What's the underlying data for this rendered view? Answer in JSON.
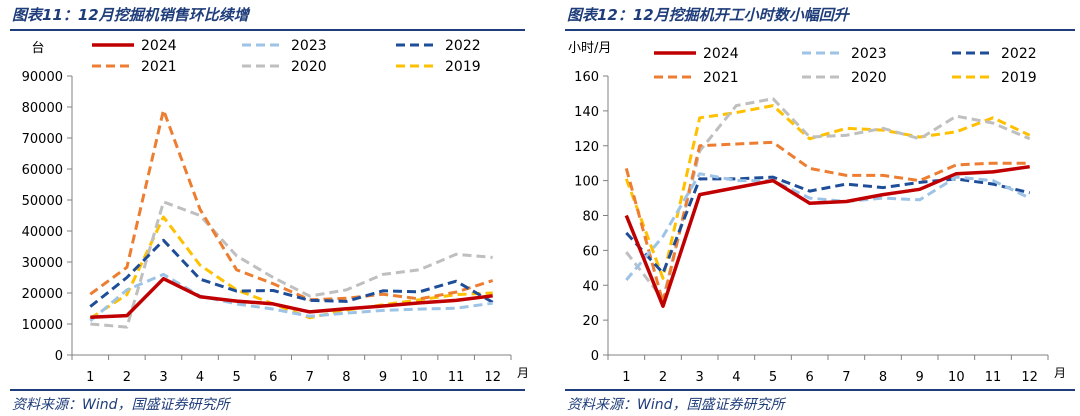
{
  "panels": [
    {
      "title": "图表11：12月挖掘机销售环比续增",
      "source": "资料来源：Wind，国盛证券研究所"
    },
    {
      "title": "图表12：12月挖掘机开工小时数小幅回升",
      "source": "资料来源：Wind，国盛证券研究所"
    }
  ],
  "chart_data": [
    {
      "type": "line",
      "title": "12月挖掘机销售环比续增",
      "ylabel": "台",
      "xlabel": "月",
      "ylim": [
        0,
        90000
      ],
      "yticks": [
        0,
        10000,
        20000,
        30000,
        40000,
        50000,
        60000,
        70000,
        80000,
        90000
      ],
      "ytick_labels": [
        "0",
        "10000",
        "20000",
        "30000",
        "40000",
        "50000",
        "60000",
        "70000",
        "80000",
        "90000"
      ],
      "categories": [
        "1",
        "2",
        "3",
        "4",
        "5",
        "6",
        "7",
        "8",
        "9",
        "10",
        "11",
        "12"
      ],
      "grid": false,
      "legend_position": "top",
      "series": [
        {
          "name": "2024",
          "color": "#c00000",
          "style": "solid",
          "values": [
            12200,
            12700,
            24600,
            18800,
            17400,
            16500,
            13900,
            14900,
            15800,
            16800,
            17600,
            19100
          ]
        },
        {
          "name": "2023",
          "color": "#9dc3e6",
          "style": "dashed",
          "values": [
            11000,
            21000,
            26000,
            19000,
            16500,
            14800,
            12500,
            13500,
            14400,
            14800,
            15100,
            16700
          ]
        },
        {
          "name": "2022",
          "color": "#1f4e99",
          "style": "dashed",
          "values": [
            15600,
            25000,
            37000,
            24500,
            20600,
            20800,
            17600,
            17300,
            20700,
            20400,
            23800,
            17000
          ]
        },
        {
          "name": "2021",
          "color": "#ed7d31",
          "style": "dashed",
          "values": [
            19600,
            28300,
            79000,
            47000,
            27500,
            23000,
            17800,
            18300,
            19600,
            18100,
            20300,
            24000
          ]
        },
        {
          "name": "2020",
          "color": "#bfbfbf",
          "style": "dashed",
          "values": [
            10000,
            9000,
            49400,
            45000,
            32000,
            25000,
            19000,
            21000,
            26000,
            27500,
            32500,
            31500
          ]
        },
        {
          "name": "2019",
          "color": "#ffc000",
          "style": "dashed",
          "values": [
            11800,
            19500,
            44500,
            29000,
            21000,
            16500,
            12000,
            14500,
            16200,
            17800,
            19500,
            20000
          ]
        }
      ]
    },
    {
      "type": "line",
      "title": "12月挖掘机开工小时数小幅回升",
      "ylabel": "小时/月",
      "xlabel": "月",
      "ylim": [
        0,
        160
      ],
      "yticks": [
        0,
        20,
        40,
        60,
        80,
        100,
        120,
        140,
        160
      ],
      "ytick_labels": [
        "0",
        "20",
        "40",
        "60",
        "80",
        "100",
        "120",
        "140",
        "160"
      ],
      "categories": [
        "1",
        "2",
        "3",
        "4",
        "5",
        "6",
        "7",
        "8",
        "9",
        "10",
        "11",
        "12"
      ],
      "grid": false,
      "legend_position": "top",
      "series": [
        {
          "name": "2024",
          "color": "#c00000",
          "style": "solid",
          "values": [
            80,
            28,
            92,
            96,
            100,
            87,
            88,
            92,
            95,
            104,
            105,
            108
          ]
        },
        {
          "name": "2023",
          "color": "#9dc3e6",
          "style": "dashed",
          "values": [
            43,
            68,
            104,
            100,
            100,
            90,
            88,
            90,
            89,
            102,
            100,
            90
          ]
        },
        {
          "name": "2022",
          "color": "#1f4e99",
          "style": "dashed",
          "values": [
            70,
            47,
            101,
            101,
            102,
            94,
            98,
            96,
            99,
            101,
            98,
            93
          ]
        },
        {
          "name": "2021",
          "color": "#ed7d31",
          "style": "dashed",
          "values": [
            107,
            30,
            120,
            121,
            122,
            107,
            103,
            103,
            100,
            109,
            110,
            110
          ]
        },
        {
          "name": "2020",
          "color": "#bfbfbf",
          "style": "dashed",
          "values": [
            59,
            32,
            117,
            143,
            147,
            125,
            126,
            130,
            124,
            137,
            133,
            124
          ]
        },
        {
          "name": "2019",
          "color": "#ffc000",
          "style": "dashed",
          "values": [
            101,
            44,
            136,
            139,
            143,
            124,
            130,
            129,
            125,
            128,
            136,
            126
          ]
        }
      ]
    }
  ]
}
